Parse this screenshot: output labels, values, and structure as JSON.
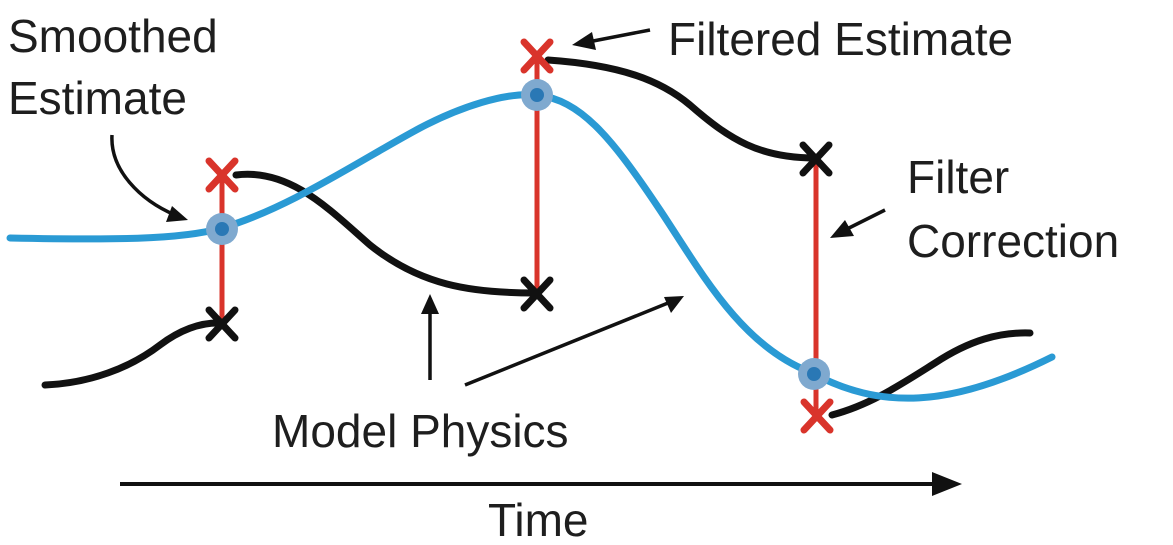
{
  "labels": {
    "smoothed_line1": "Smoothed",
    "smoothed_line2": "Estimate",
    "filtered": "Filtered Estimate",
    "filter_line1": "Filter",
    "filter_line2": "Correction",
    "model_physics": "Model Physics",
    "time": "Time"
  },
  "colors": {
    "smoothed_line": "#2a9ad4",
    "smoothed_marker": "#7fa9cf",
    "filtered_marker": "#d9342b",
    "forecast_marker": "#111111",
    "correction_line": "#d9342b",
    "model_physics_line": "#111111"
  },
  "icons": {
    "filtered_estimate": "red-x-marker",
    "model_forecast": "black-x-marker",
    "smoothed_estimate": "blue-dot-marker"
  }
}
